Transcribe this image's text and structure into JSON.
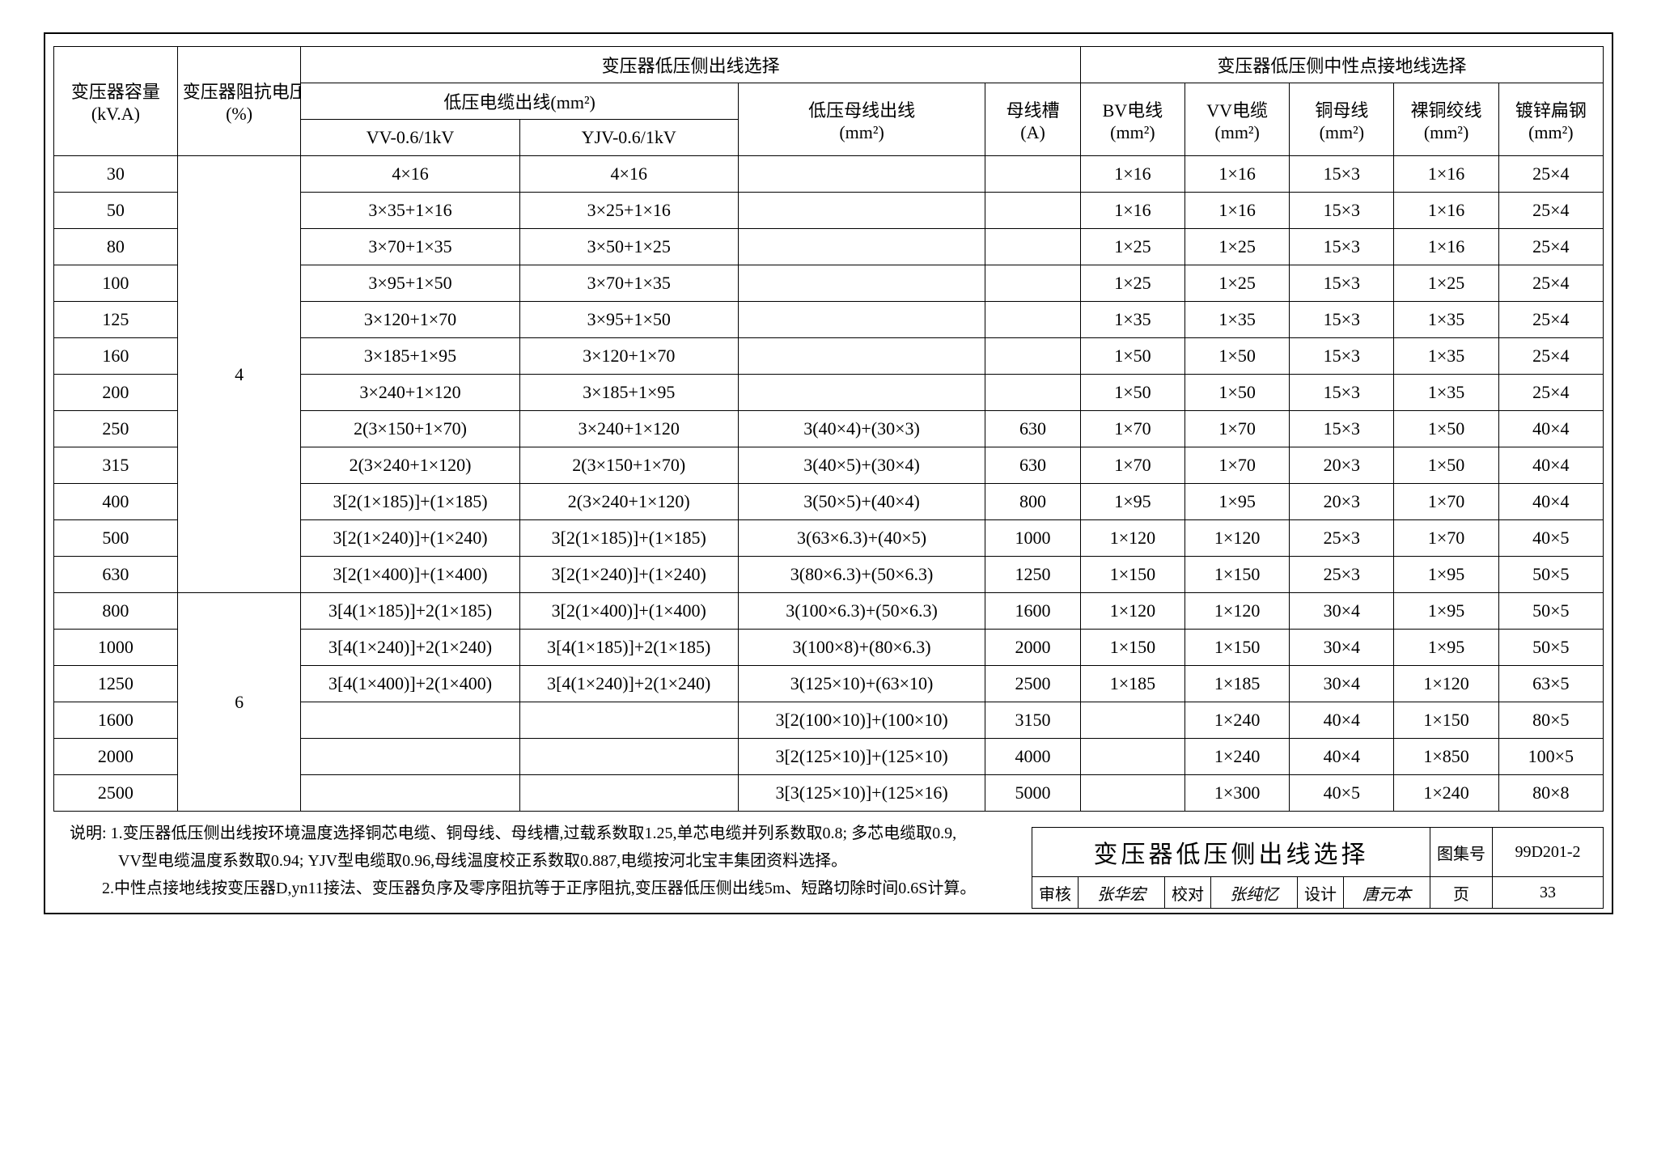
{
  "header": {
    "col_capacity_l1": "变压器容量",
    "col_capacity_l2": "(kV.A)",
    "col_impedance_l1": "变压器阻抗电压",
    "col_impedance_l2": "(%)",
    "group_lv_outlet": "变压器低压侧出线选择",
    "group_cable": "低压电缆出线(mm²)",
    "col_vv": "VV-0.6/1kV",
    "col_yjv": "YJV-0.6/1kV",
    "col_busbar_l1": "低压母线出线",
    "col_busbar_l2": "(mm²)",
    "col_slot_l1": "母线槽",
    "col_slot_l2": "(A)",
    "group_neutral": "变压器低压侧中性点接地线选择",
    "col_bv_l1": "BV电线",
    "col_bv_l2": "(mm²)",
    "col_vvc_l1": "VV电缆",
    "col_vvc_l2": "(mm²)",
    "col_cu_l1": "铜母线",
    "col_cu_l2": "(mm²)",
    "col_bare_l1": "裸铜绞线",
    "col_bare_l2": "(mm²)",
    "col_gn_l1": "镀锌扁钢",
    "col_gn_l2": "(mm²)"
  },
  "impedance_groups": [
    "4",
    "6"
  ],
  "rows": [
    {
      "cap": "30",
      "vv": "4×16",
      "yjv": "4×16",
      "bus": "",
      "slot": "",
      "bv": "1×16",
      "vvc": "1×16",
      "cu": "15×3",
      "bare": "1×16",
      "gn": "25×4"
    },
    {
      "cap": "50",
      "vv": "3×35+1×16",
      "yjv": "3×25+1×16",
      "bus": "",
      "slot": "",
      "bv": "1×16",
      "vvc": "1×16",
      "cu": "15×3",
      "bare": "1×16",
      "gn": "25×4"
    },
    {
      "cap": "80",
      "vv": "3×70+1×35",
      "yjv": "3×50+1×25",
      "bus": "",
      "slot": "",
      "bv": "1×25",
      "vvc": "1×25",
      "cu": "15×3",
      "bare": "1×16",
      "gn": "25×4"
    },
    {
      "cap": "100",
      "vv": "3×95+1×50",
      "yjv": "3×70+1×35",
      "bus": "",
      "slot": "",
      "bv": "1×25",
      "vvc": "1×25",
      "cu": "15×3",
      "bare": "1×25",
      "gn": "25×4"
    },
    {
      "cap": "125",
      "vv": "3×120+1×70",
      "yjv": "3×95+1×50",
      "bus": "",
      "slot": "",
      "bv": "1×35",
      "vvc": "1×35",
      "cu": "15×3",
      "bare": "1×35",
      "gn": "25×4"
    },
    {
      "cap": "160",
      "vv": "3×185+1×95",
      "yjv": "3×120+1×70",
      "bus": "",
      "slot": "",
      "bv": "1×50",
      "vvc": "1×50",
      "cu": "15×3",
      "bare": "1×35",
      "gn": "25×4"
    },
    {
      "cap": "200",
      "vv": "3×240+1×120",
      "yjv": "3×185+1×95",
      "bus": "",
      "slot": "",
      "bv": "1×50",
      "vvc": "1×50",
      "cu": "15×3",
      "bare": "1×35",
      "gn": "25×4"
    },
    {
      "cap": "250",
      "vv": "2(3×150+1×70)",
      "yjv": "3×240+1×120",
      "bus": "3(40×4)+(30×3)",
      "slot": "630",
      "bv": "1×70",
      "vvc": "1×70",
      "cu": "15×3",
      "bare": "1×50",
      "gn": "40×4"
    },
    {
      "cap": "315",
      "vv": "2(3×240+1×120)",
      "yjv": "2(3×150+1×70)",
      "bus": "3(40×5)+(30×4)",
      "slot": "630",
      "bv": "1×70",
      "vvc": "1×70",
      "cu": "20×3",
      "bare": "1×50",
      "gn": "40×4"
    },
    {
      "cap": "400",
      "vv": "3[2(1×185)]+(1×185)",
      "yjv": "2(3×240+1×120)",
      "bus": "3(50×5)+(40×4)",
      "slot": "800",
      "bv": "1×95",
      "vvc": "1×95",
      "cu": "20×3",
      "bare": "1×70",
      "gn": "40×4"
    },
    {
      "cap": "500",
      "vv": "3[2(1×240)]+(1×240)",
      "yjv": "3[2(1×185)]+(1×185)",
      "bus": "3(63×6.3)+(40×5)",
      "slot": "1000",
      "bv": "1×120",
      "vvc": "1×120",
      "cu": "25×3",
      "bare": "1×70",
      "gn": "40×5"
    },
    {
      "cap": "630",
      "vv": "3[2(1×400)]+(1×400)",
      "yjv": "3[2(1×240)]+(1×240)",
      "bus": "3(80×6.3)+(50×6.3)",
      "slot": "1250",
      "bv": "1×150",
      "vvc": "1×150",
      "cu": "25×3",
      "bare": "1×95",
      "gn": "50×5"
    },
    {
      "cap": "800",
      "vv": "3[4(1×185)]+2(1×185)",
      "yjv": "3[2(1×400)]+(1×400)",
      "bus": "3(100×6.3)+(50×6.3)",
      "slot": "1600",
      "bv": "1×120",
      "vvc": "1×120",
      "cu": "30×4",
      "bare": "1×95",
      "gn": "50×5"
    },
    {
      "cap": "1000",
      "vv": "3[4(1×240)]+2(1×240)",
      "yjv": "3[4(1×185)]+2(1×185)",
      "bus": "3(100×8)+(80×6.3)",
      "slot": "2000",
      "bv": "1×150",
      "vvc": "1×150",
      "cu": "30×4",
      "bare": "1×95",
      "gn": "50×5"
    },
    {
      "cap": "1250",
      "vv": "3[4(1×400)]+2(1×400)",
      "yjv": "3[4(1×240)]+2(1×240)",
      "bus": "3(125×10)+(63×10)",
      "slot": "2500",
      "bv": "1×185",
      "vvc": "1×185",
      "cu": "30×4",
      "bare": "1×120",
      "gn": "63×5"
    },
    {
      "cap": "1600",
      "vv": "",
      "yjv": "",
      "bus": "3[2(100×10)]+(100×10)",
      "slot": "3150",
      "bv": "",
      "vvc": "1×240",
      "cu": "40×4",
      "bare": "1×150",
      "gn": "80×5"
    },
    {
      "cap": "2000",
      "vv": "",
      "yjv": "",
      "bus": "3[2(125×10)]+(125×10)",
      "slot": "4000",
      "bv": "",
      "vvc": "1×240",
      "cu": "40×4",
      "bare": "1×850",
      "gn": "100×5"
    },
    {
      "cap": "2500",
      "vv": "",
      "yjv": "",
      "bus": "3[3(125×10)]+(125×16)",
      "slot": "5000",
      "bv": "",
      "vvc": "1×300",
      "cu": "40×5",
      "bare": "1×240",
      "gn": "80×8"
    }
  ],
  "notes": {
    "label": "说明:",
    "line1": "1.变压器低压侧出线按环境温度选择铜芯电缆、铜母线、母线槽,过载系数取1.25,单芯电缆并列系数取0.8; 多芯电缆取0.9,",
    "line1b": "　VV型电缆温度系数取0.94; YJV型电缆取0.96,母线温度校正系数取0.887,电缆按河北宝丰集团资料选择。",
    "line2": "2.中性点接地线按变压器D,yn11接法、变压器负序及零序阻抗等于正序阻抗,变压器低压侧出线5m、短路切除时间0.6S计算。"
  },
  "titleblock": {
    "title": "变压器低压侧出线选择",
    "album_lbl": "图集号",
    "album_val": "99D201-2",
    "review_lbl": "审核",
    "review_val": "张华宏",
    "check_lbl": "校对",
    "check_val": "张纯忆",
    "design_lbl": "设计",
    "design_val": "唐元本",
    "page_lbl": "页",
    "page_val": "33"
  }
}
